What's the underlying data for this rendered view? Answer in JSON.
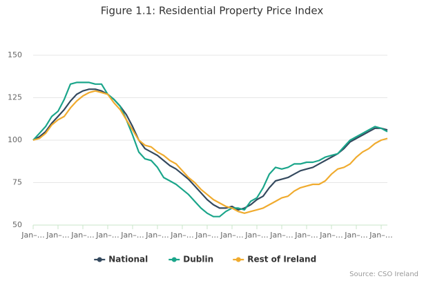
{
  "chart_data": {
    "type": "line",
    "title": "Figure 1.1: Residential Property Price Index",
    "categories": [
      "Jan–…",
      null,
      null,
      null,
      "Jan–…",
      null,
      null,
      null,
      "Jan–…",
      null,
      null,
      null,
      "Jan–…",
      null,
      null,
      null,
      "Jan–…",
      null,
      null,
      null,
      "Jan–…",
      null,
      null,
      null,
      "Jan–…",
      null,
      null,
      null,
      "Jan–…",
      null,
      null,
      null,
      "Jan–…",
      null,
      null,
      null,
      "Jan–…",
      null,
      null,
      null,
      "Jan–…",
      null,
      null,
      null,
      "Jan–…",
      null,
      null,
      null,
      "Jan–…",
      null,
      null,
      null,
      "Jan–…",
      null,
      null,
      null,
      "Jan–…",
      null
    ],
    "series": [
      {
        "name": "National",
        "color": "#34495e",
        "values": [
          100,
          102,
          105,
          110,
          114,
          118,
          123,
          127,
          129,
          130,
          130,
          129,
          127,
          124,
          120,
          115,
          108,
          100,
          95,
          93,
          91,
          88,
          85,
          83,
          80,
          77,
          73,
          69,
          65,
          62,
          60,
          60,
          61,
          59,
          60,
          62,
          65,
          67,
          72,
          76,
          77,
          78,
          80,
          82,
          83,
          84,
          86,
          88,
          90,
          92,
          95,
          99,
          101,
          103,
          105,
          107,
          107,
          106
        ]
      },
      {
        "name": "Dublin",
        "color": "#1aa58a",
        "values": [
          100,
          104,
          108,
          114,
          117,
          124,
          133,
          134,
          134,
          134,
          133,
          133,
          127,
          124,
          120,
          112,
          103,
          93,
          89,
          88,
          84,
          78,
          76,
          74,
          71,
          68,
          64,
          60,
          57,
          55,
          55,
          58,
          60,
          60,
          59,
          64,
          66,
          72,
          80,
          84,
          83,
          84,
          86,
          86,
          87,
          87,
          88,
          90,
          91,
          92,
          96,
          100,
          102,
          104,
          106,
          108,
          107,
          105
        ]
      },
      {
        "name": "Rest of Ireland",
        "color": "#f0ab2e",
        "values": [
          100,
          101,
          104,
          109,
          112,
          114,
          119,
          123,
          126,
          128,
          129,
          128,
          127,
          122,
          118,
          112,
          106,
          100,
          97,
          96,
          93,
          91,
          88,
          86,
          82,
          78,
          75,
          71,
          68,
          65,
          63,
          61,
          60,
          58,
          57,
          58,
          59,
          60,
          62,
          64,
          66,
          67,
          70,
          72,
          73,
          74,
          74,
          76,
          80,
          83,
          84,
          86,
          90,
          93,
          95,
          98,
          100,
          101
        ]
      }
    ],
    "ylim": [
      50,
      150
    ],
    "yticks": [
      50,
      75,
      100,
      125,
      150
    ],
    "grid": true,
    "legend": "bottom",
    "source": "Source: CSO Ireland"
  }
}
